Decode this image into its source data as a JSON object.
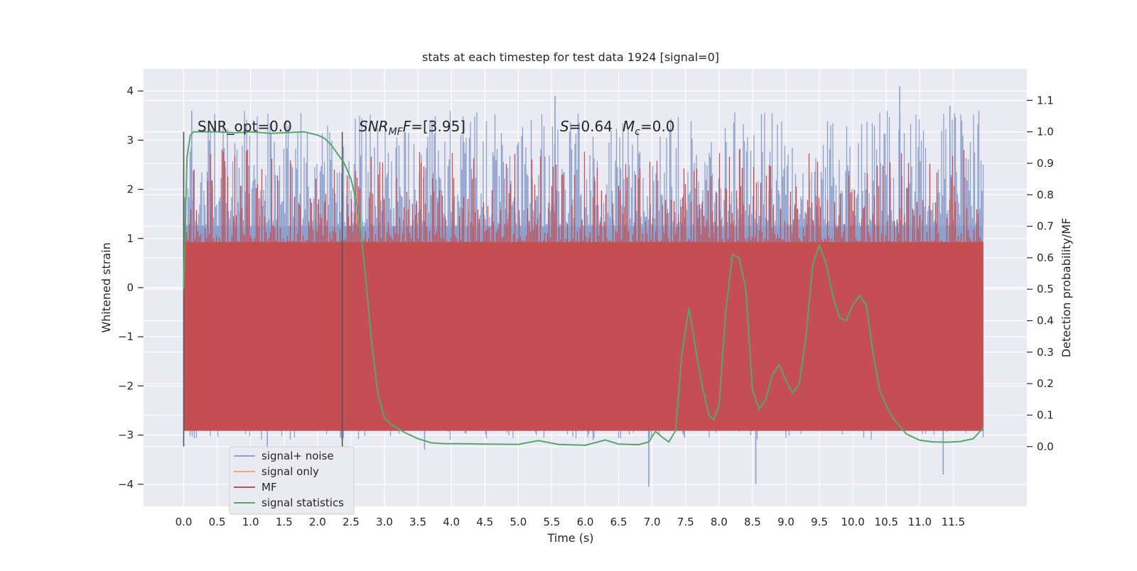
{
  "chart_data": {
    "type": "line",
    "title": "stats at each timestep for test data 1924 [signal=0]",
    "xlabel": "Time (s)",
    "ylabel": "Whitened strain",
    "y2label": "Detection probability/MF",
    "xlim": [
      -0.6,
      12.6
    ],
    "ylim": [
      -4.45,
      4.45
    ],
    "y2lim": [
      -0.19,
      1.2
    ],
    "x_ticks": [
      "0.0",
      "0.5",
      "1.0",
      "1.5",
      "2.0",
      "2.5",
      "3.0",
      "3.5",
      "4.0",
      "4.5",
      "5.0",
      "5.5",
      "6.0",
      "6.5",
      "7.0",
      "7.5",
      "8.0",
      "8.5",
      "9.0",
      "9.5",
      "10.0",
      "10.5",
      "11.0",
      "11.5"
    ],
    "y_ticks": [
      "4",
      "3",
      "2",
      "1",
      "0",
      "−1",
      "−2",
      "−3",
      "−4"
    ],
    "y2_ticks": [
      "1.1",
      "1.0",
      "0.9",
      "0.8",
      "0.7",
      "0.6",
      "0.5",
      "0.4",
      "0.3",
      "0.2",
      "0.1",
      "0.0"
    ],
    "grid": true,
    "background": "#eaeaf2",
    "legend_position": "lower-left",
    "annotations": {
      "snr_opt": "SNR_opt=0.0",
      "snr_mf_main": "SNR",
      "snr_mf_sub": "MF",
      "snr_mf_val": "=[3.95]",
      "s_var": "S",
      "s_val": "=0.64",
      "mc_var": "M",
      "mc_sub": "c",
      "mc_val": "=0.0"
    },
    "vertical_markers": [
      0.0,
      2.37
    ],
    "noise": {
      "x_range": [
        0.0,
        11.95
      ],
      "band_upper": 1.25,
      "band_lower": -1.85,
      "peak_upper": 3.6,
      "peak_lower": -3.1,
      "max_spike": 4.1,
      "min_spike": -4.0
    },
    "mf": {
      "band_low": 0.05,
      "band_high": 0.65,
      "peak": 0.95
    },
    "series": [
      {
        "name": "signal+ noise",
        "color": "#8da0cb",
        "axis": "left"
      },
      {
        "name": "signal only",
        "color": "#e9a98f",
        "axis": "left"
      },
      {
        "name": "MF",
        "color": "#c44e52",
        "axis": "left"
      },
      {
        "name": "signal statistics",
        "color": "#55a868",
        "axis": "right",
        "x": [
          0.0,
          0.05,
          0.1,
          0.15,
          0.2,
          0.3,
          0.5,
          0.8,
          1.0,
          1.3,
          1.5,
          1.8,
          2.0,
          2.1,
          2.2,
          2.3,
          2.4,
          2.5,
          2.6,
          2.7,
          2.8,
          2.9,
          3.0,
          3.1,
          3.3,
          3.5,
          3.7,
          3.9,
          4.1,
          4.5,
          5.0,
          5.3,
          5.6,
          6.0,
          6.3,
          6.5,
          6.8,
          6.95,
          7.05,
          7.15,
          7.25,
          7.35,
          7.45,
          7.55,
          7.65,
          7.75,
          7.85,
          7.92,
          8.0,
          8.1,
          8.2,
          8.3,
          8.4,
          8.5,
          8.6,
          8.7,
          8.8,
          8.9,
          9.0,
          9.1,
          9.2,
          9.3,
          9.4,
          9.5,
          9.6,
          9.7,
          9.8,
          9.9,
          10.0,
          10.1,
          10.2,
          10.3,
          10.4,
          10.5,
          10.6,
          10.8,
          11.0,
          11.2,
          11.4,
          11.6,
          11.8,
          11.95
        ],
        "y": [
          0.5,
          0.92,
          0.99,
          1.0,
          1.0,
          1.0,
          1.0,
          0.997,
          1.0,
          0.995,
          0.997,
          1.0,
          0.99,
          0.98,
          0.96,
          0.93,
          0.9,
          0.85,
          0.76,
          0.58,
          0.35,
          0.17,
          0.09,
          0.07,
          0.045,
          0.025,
          0.012,
          0.009,
          0.009,
          0.008,
          0.007,
          0.019,
          0.007,
          0.004,
          0.021,
          0.008,
          0.006,
          0.015,
          0.048,
          0.03,
          0.015,
          0.05,
          0.3,
          0.44,
          0.31,
          0.19,
          0.1,
          0.085,
          0.13,
          0.43,
          0.61,
          0.6,
          0.5,
          0.18,
          0.12,
          0.15,
          0.23,
          0.26,
          0.21,
          0.17,
          0.2,
          0.35,
          0.58,
          0.64,
          0.58,
          0.48,
          0.41,
          0.4,
          0.45,
          0.48,
          0.45,
          0.3,
          0.18,
          0.13,
          0.09,
          0.04,
          0.02,
          0.015,
          0.014,
          0.016,
          0.025,
          0.06
        ]
      }
    ]
  }
}
